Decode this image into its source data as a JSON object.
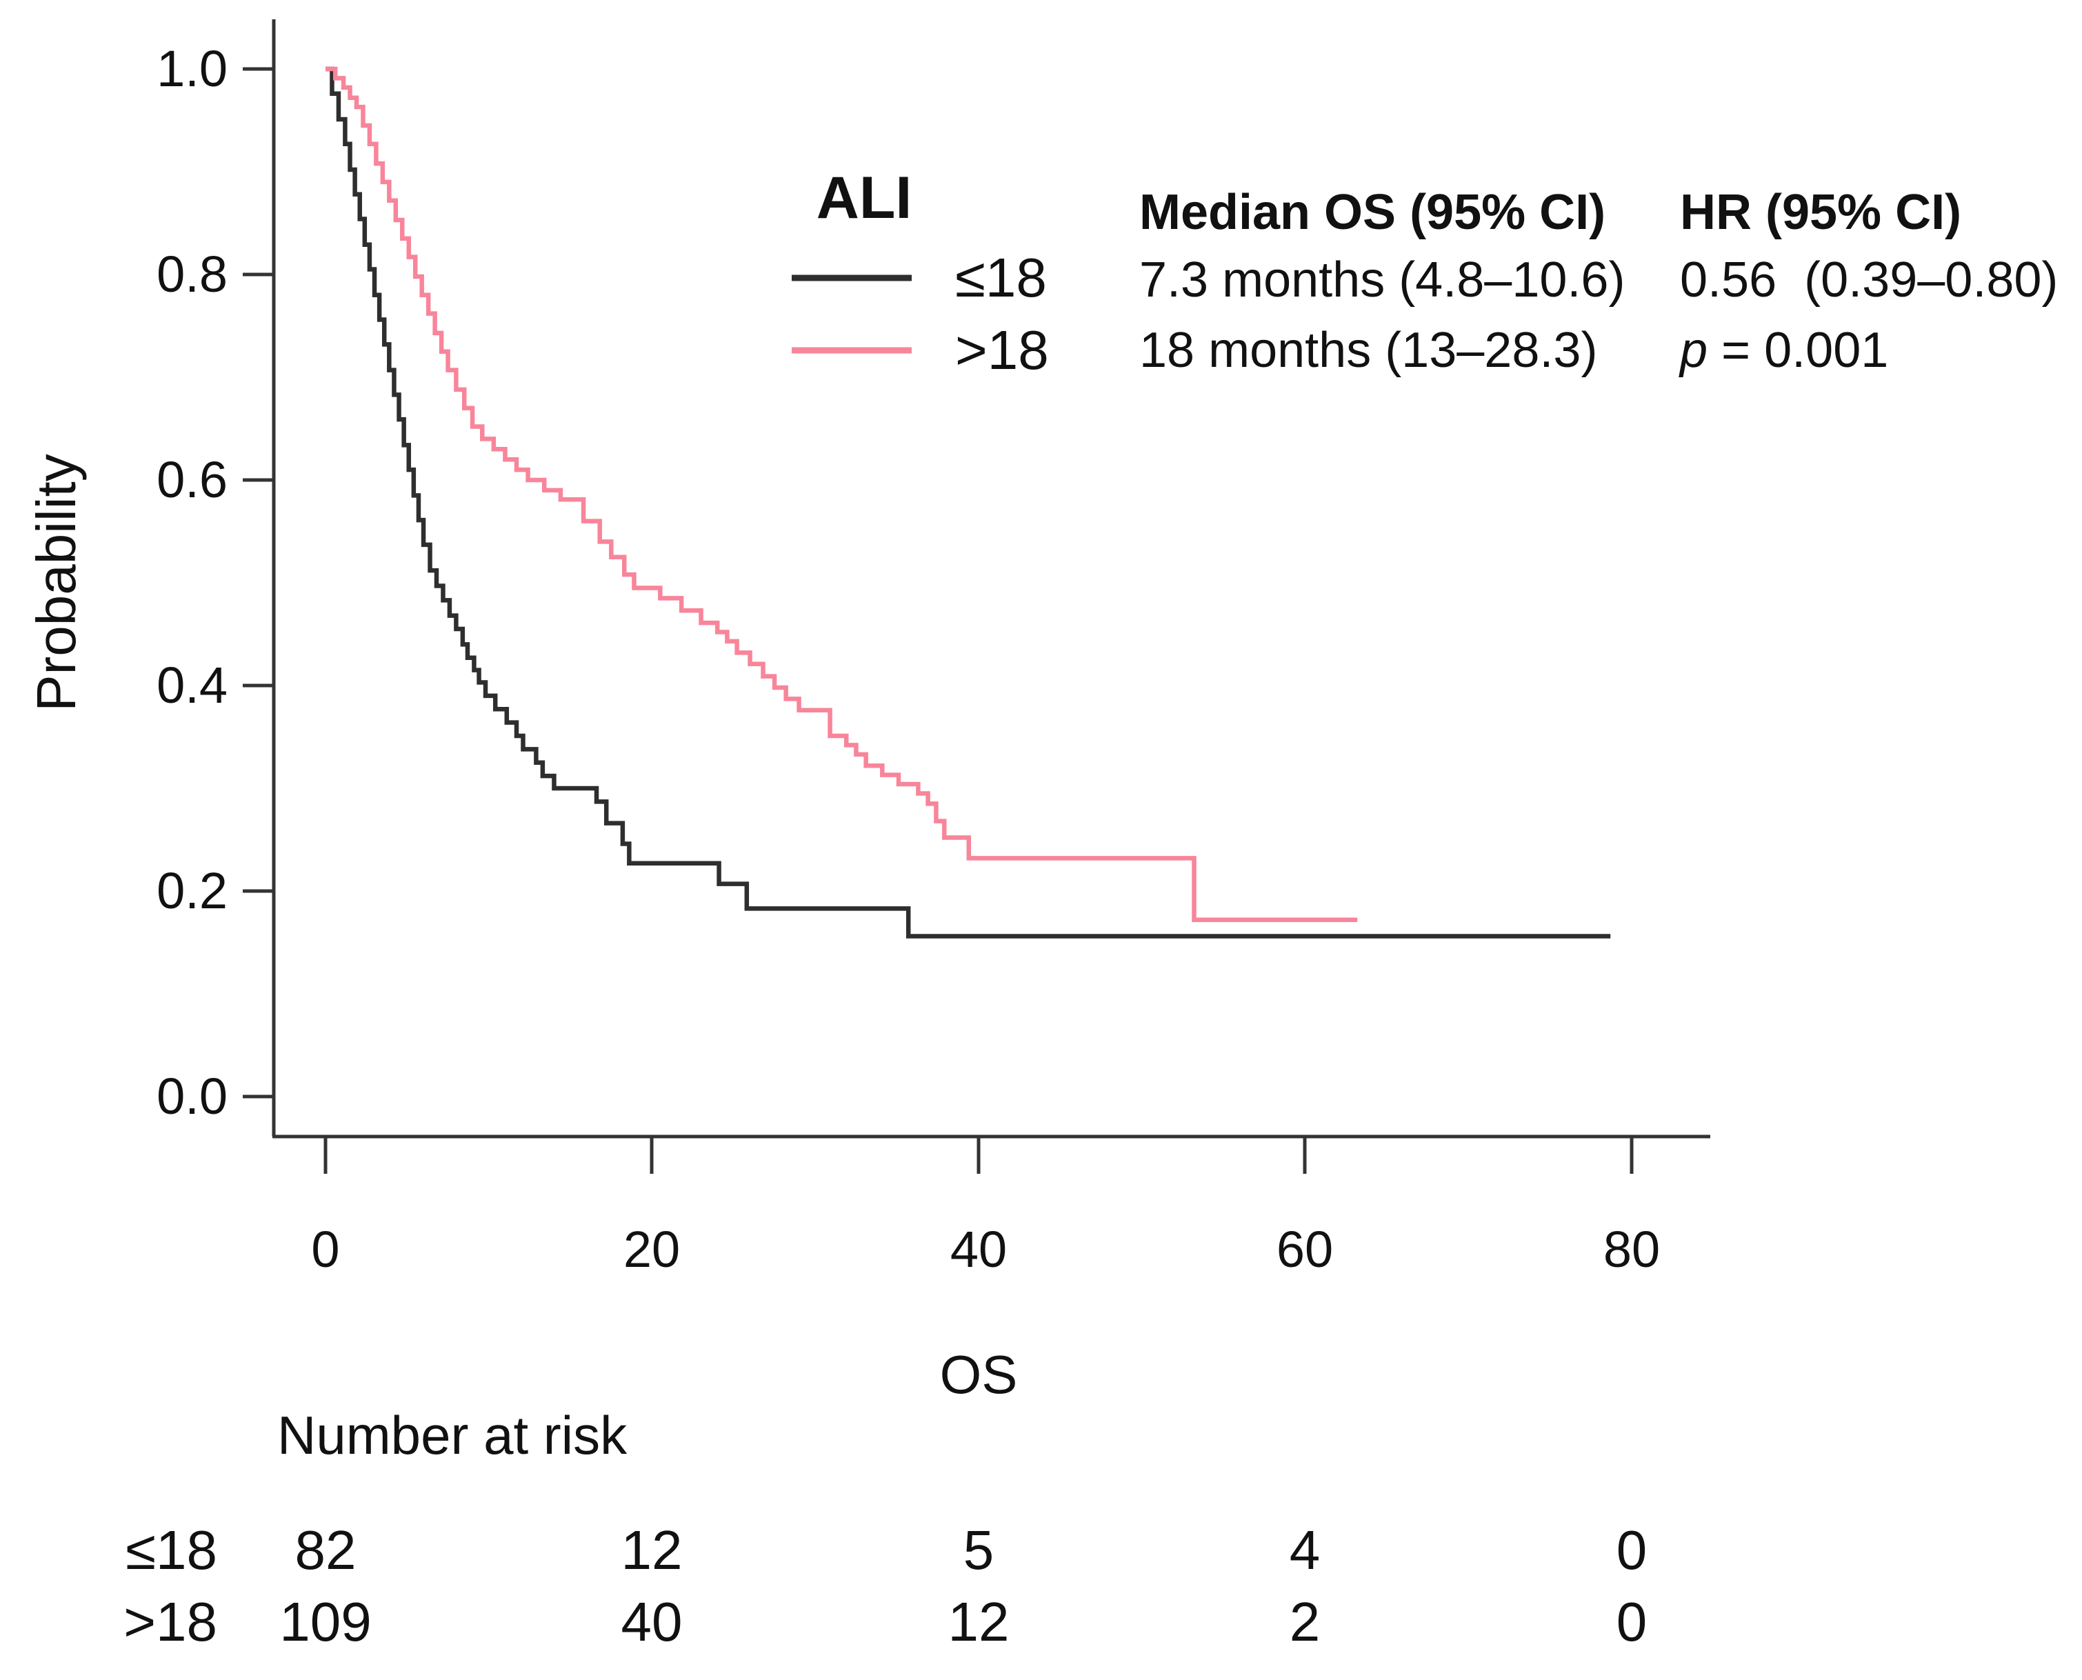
{
  "chart_data": {
    "type": "line",
    "subtype": "kaplan-meier-step",
    "xlabel": "OS",
    "ylabel": "Probability",
    "xlim": [
      0,
      80
    ],
    "ylim": [
      0.0,
      1.0
    ],
    "grid": false,
    "x_ticks": [
      0,
      20,
      40,
      60,
      80
    ],
    "y_ticks": [
      1.0,
      0.8,
      0.6,
      0.4,
      0.2,
      0.0
    ],
    "x_tick_labels": [
      "0",
      "20",
      "40",
      "60",
      "80"
    ],
    "y_tick_labels": [
      "1.0",
      "0.8",
      "0.6",
      "0.4",
      "0.2",
      "0.0"
    ],
    "legend": {
      "title": "ALI",
      "position": "top-center",
      "entries": [
        {
          "label": "≤18",
          "color": "#2e2e2e"
        },
        {
          "label": ">18",
          "color": "#f8859a"
        }
      ]
    },
    "series": [
      {
        "name": "≤18",
        "color": "#2e2e2e",
        "end_x": 78.7,
        "steps": [
          [
            0,
            1.0
          ],
          [
            0.4,
            0.976
          ],
          [
            0.8,
            0.951
          ],
          [
            1.2,
            0.927
          ],
          [
            1.5,
            0.902
          ],
          [
            1.8,
            0.878
          ],
          [
            2.1,
            0.854
          ],
          [
            2.4,
            0.829
          ],
          [
            2.7,
            0.805
          ],
          [
            3.0,
            0.78
          ],
          [
            3.3,
            0.756
          ],
          [
            3.6,
            0.732
          ],
          [
            3.9,
            0.707
          ],
          [
            4.2,
            0.683
          ],
          [
            4.5,
            0.659
          ],
          [
            4.8,
            0.634
          ],
          [
            5.1,
            0.61
          ],
          [
            5.4,
            0.585
          ],
          [
            5.7,
            0.561
          ],
          [
            6.0,
            0.537
          ],
          [
            6.4,
            0.512
          ],
          [
            6.8,
            0.497
          ],
          [
            7.2,
            0.483
          ],
          [
            7.6,
            0.468
          ],
          [
            8.0,
            0.455
          ],
          [
            8.4,
            0.44
          ],
          [
            8.7,
            0.427
          ],
          [
            9.1,
            0.415
          ],
          [
            9.4,
            0.403
          ],
          [
            9.8,
            0.39
          ],
          [
            10.4,
            0.377
          ],
          [
            11.1,
            0.364
          ],
          [
            11.7,
            0.351
          ],
          [
            12.1,
            0.338
          ],
          [
            12.9,
            0.325
          ],
          [
            13.3,
            0.312
          ],
          [
            14.0,
            0.3
          ],
          [
            16.6,
            0.287
          ],
          [
            17.2,
            0.266
          ],
          [
            18.2,
            0.246
          ],
          [
            18.6,
            0.227
          ],
          [
            24.1,
            0.207
          ],
          [
            25.8,
            0.183
          ],
          [
            35.7,
            0.156
          ]
        ]
      },
      {
        "name": ">18",
        "color": "#f8859a",
        "end_x": 63.2,
        "steps": [
          [
            0,
            1.0
          ],
          [
            0.6,
            0.991
          ],
          [
            1.1,
            0.982
          ],
          [
            1.5,
            0.972
          ],
          [
            1.9,
            0.963
          ],
          [
            2.3,
            0.945
          ],
          [
            2.7,
            0.927
          ],
          [
            3.1,
            0.908
          ],
          [
            3.5,
            0.89
          ],
          [
            3.9,
            0.872
          ],
          [
            4.3,
            0.853
          ],
          [
            4.7,
            0.835
          ],
          [
            5.1,
            0.817
          ],
          [
            5.5,
            0.798
          ],
          [
            5.9,
            0.78
          ],
          [
            6.3,
            0.762
          ],
          [
            6.7,
            0.743
          ],
          [
            7.1,
            0.725
          ],
          [
            7.5,
            0.707
          ],
          [
            8.0,
            0.688
          ],
          [
            8.5,
            0.67
          ],
          [
            9.0,
            0.652
          ],
          [
            9.6,
            0.64
          ],
          [
            10.3,
            0.63
          ],
          [
            11.0,
            0.62
          ],
          [
            11.7,
            0.61
          ],
          [
            12.4,
            0.6
          ],
          [
            13.4,
            0.59
          ],
          [
            14.4,
            0.581
          ],
          [
            15.8,
            0.56
          ],
          [
            16.8,
            0.54
          ],
          [
            17.5,
            0.525
          ],
          [
            18.3,
            0.508
          ],
          [
            18.9,
            0.495
          ],
          [
            20.5,
            0.485
          ],
          [
            21.8,
            0.473
          ],
          [
            23.0,
            0.461
          ],
          [
            24.0,
            0.452
          ],
          [
            24.6,
            0.443
          ],
          [
            25.2,
            0.432
          ],
          [
            26.0,
            0.421
          ],
          [
            26.8,
            0.409
          ],
          [
            27.5,
            0.398
          ],
          [
            28.2,
            0.387
          ],
          [
            29.0,
            0.376
          ],
          [
            30.9,
            0.351
          ],
          [
            31.9,
            0.342
          ],
          [
            32.5,
            0.333
          ],
          [
            33.1,
            0.322
          ],
          [
            34.1,
            0.313
          ],
          [
            35.1,
            0.304
          ],
          [
            36.3,
            0.295
          ],
          [
            36.9,
            0.285
          ],
          [
            37.4,
            0.268
          ],
          [
            37.9,
            0.252
          ],
          [
            39.4,
            0.232
          ],
          [
            53.2,
            0.172
          ]
        ]
      }
    ],
    "stats": {
      "col1_header": "Median OS (95% CI)",
      "col2_header": "HR (95% CI)",
      "rows": [
        {
          "median": "7.3 months (4.8–10.6)",
          "hr": "0.56  (0.39–0.80)"
        },
        {
          "median": "18 months (13–28.3)",
          "hr_p_label": "p",
          "hr_p_value": " = 0.001"
        }
      ]
    },
    "risk_table": {
      "title": "Number at risk",
      "time_points": [
        0,
        20,
        40,
        60,
        80
      ],
      "rows": [
        {
          "label": "≤18",
          "values": [
            "82",
            "12",
            "5",
            "4",
            "0"
          ]
        },
        {
          "label": ">18",
          "values": [
            "109",
            "40",
            "12",
            "2",
            "0"
          ]
        }
      ]
    }
  },
  "labels": {
    "ylabel": "Probability",
    "xlabel": "OS",
    "legend_title": "ALI",
    "legend_entry_1": "≤18",
    "legend_entry_2": ">18",
    "risk_title": "Number at risk"
  },
  "colors": {
    "series_low": "#2e2e2e",
    "series_high": "#f8859a",
    "axis": "#333333",
    "text": "#111111"
  }
}
